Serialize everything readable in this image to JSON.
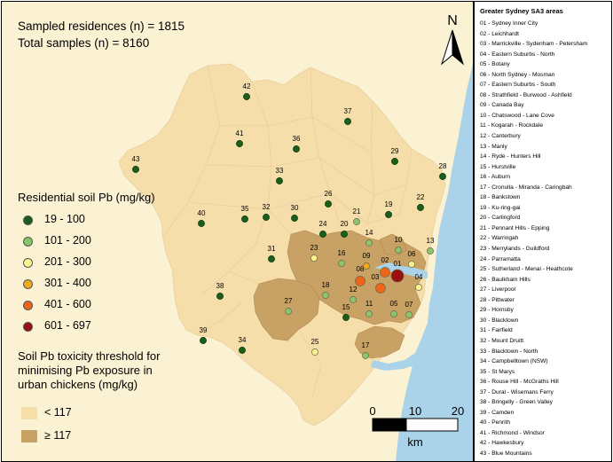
{
  "stats": {
    "residences": "Sampled residences (n) = 1815",
    "samples": "Total samples (n) = 8160"
  },
  "north_label": "N",
  "legend_pb": {
    "title": "Residential soil Pb (mg/kg)",
    "classes": [
      {
        "label": "19 - 100",
        "color": "#1b5e1b"
      },
      {
        "label": "101 - 200",
        "color": "#8cc46e"
      },
      {
        "label": "201 - 300",
        "color": "#fbf48e"
      },
      {
        "label": "301 - 400",
        "color": "#f4a81c"
      },
      {
        "label": "401 - 600",
        "color": "#ef6418"
      },
      {
        "label": "601 - 697",
        "color": "#9b0f0f"
      }
    ]
  },
  "legend_threshold": {
    "title_line1": "Soil Pb toxicity threshold for",
    "title_line2": "minimising Pb exposure in",
    "title_line3": "urban chickens (mg/kg)",
    "items": [
      {
        "label": "< 117",
        "color": "#f6deab"
      },
      {
        "label": "≥ 117",
        "color": "#c8a164"
      }
    ]
  },
  "scale_bar": {
    "ticks": [
      "0",
      "10",
      "20"
    ],
    "unit": "km"
  },
  "sa3_legend": {
    "title": "Greater Sydney SA3 areas",
    "items": [
      "01 - Sydney Inner City",
      "02 - Leichhardt",
      "03 - Marrickville - Sydenham - Petersham",
      "04 - Eastern Suburbs - North",
      "05 - Botany",
      "06 - North Sydney - Mosman",
      "07 - Eastern Suburbs - South",
      "08 - Strathfield - Burwood - Ashfield",
      "09 - Canada Bay",
      "10 - Chatswood - Lane Cove",
      "11 - Kogarah - Rockdale",
      "12 - Canterbury",
      "13 - Manly",
      "14 - Ryde - Hunters Hill",
      "15 - Hurstville",
      "16 - Auburn",
      "17 - Cronulla - Miranda - Caringbah",
      "18 - Bankstown",
      "19 - Ku-ring-gai",
      "20 - Carlingford",
      "21 - Pennant Hills - Epping",
      "22 - Warringah",
      "23 - Merrylands - Guildford",
      "24 - Parramatta",
      "25 - Sutherland - Menai - Heathcote",
      "26 - Baulkham Hills",
      "27 - Liverpool",
      "28 - Pittwater",
      "29 - Hornsby",
      "30 - Blacktown",
      "31 - Fairfield",
      "32 - Mount Druitt",
      "33 - Blacktown - North",
      "34 - Campbelltown (NSW)",
      "35 - St Marys",
      "36 - Rouse Hill - McGraths Hill",
      "37 - Dural - Wisemans Ferry",
      "38 - Bringelly - Green Valley",
      "39 - Camden",
      "40 - Penrith",
      "41 - Richmond - Windsor",
      "42 - Hawkesbury",
      "43 - Blue Mountains"
    ]
  },
  "sites": [
    {
      "id": "01",
      "cls": 5
    },
    {
      "id": "02",
      "cls": 4
    },
    {
      "id": "03",
      "cls": 4
    },
    {
      "id": "04",
      "cls": 2
    },
    {
      "id": "05",
      "cls": 1
    },
    {
      "id": "06",
      "cls": 2
    },
    {
      "id": "07",
      "cls": 1
    },
    {
      "id": "08",
      "cls": 4
    },
    {
      "id": "09",
      "cls": 3
    },
    {
      "id": "10",
      "cls": 1
    },
    {
      "id": "11",
      "cls": 1
    },
    {
      "id": "12",
      "cls": 1
    },
    {
      "id": "13",
      "cls": 1
    },
    {
      "id": "14",
      "cls": 1
    },
    {
      "id": "15",
      "cls": 0
    },
    {
      "id": "16",
      "cls": 1
    },
    {
      "id": "17",
      "cls": 1
    },
    {
      "id": "18",
      "cls": 1
    },
    {
      "id": "19",
      "cls": 0
    },
    {
      "id": "20",
      "cls": 0
    },
    {
      "id": "21",
      "cls": 1
    },
    {
      "id": "22",
      "cls": 0
    },
    {
      "id": "23",
      "cls": 2
    },
    {
      "id": "24",
      "cls": 0
    },
    {
      "id": "25",
      "cls": 2
    },
    {
      "id": "26",
      "cls": 0
    },
    {
      "id": "27",
      "cls": 1
    },
    {
      "id": "28",
      "cls": 0
    },
    {
      "id": "29",
      "cls": 0
    },
    {
      "id": "30",
      "cls": 0
    },
    {
      "id": "31",
      "cls": 0
    },
    {
      "id": "32",
      "cls": 0
    },
    {
      "id": "33",
      "cls": 0
    },
    {
      "id": "34",
      "cls": 0
    },
    {
      "id": "35",
      "cls": 0
    },
    {
      "id": "36",
      "cls": 0
    },
    {
      "id": "37",
      "cls": 0
    },
    {
      "id": "38",
      "cls": 0
    },
    {
      "id": "39",
      "cls": 0
    },
    {
      "id": "40",
      "cls": 0
    },
    {
      "id": "41",
      "cls": 0
    },
    {
      "id": "42",
      "cls": 0
    },
    {
      "id": "43",
      "cls": 0
    }
  ]
}
